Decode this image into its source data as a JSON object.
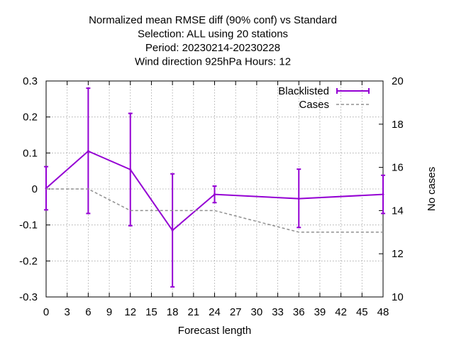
{
  "chart_data": {
    "type": "line",
    "title_lines": [
      "Normalized mean RMSE diff (90% conf) vs Standard",
      "Selection: ALL using    20 stations",
      "Period: 20230214-20230228",
      "Wind direction 925hPa   Hours:  12"
    ],
    "xlabel": "Forecast length",
    "ylabel": "",
    "y2label": "No cases",
    "xlim": [
      0,
      48
    ],
    "ylim": [
      -0.3,
      0.3
    ],
    "y2lim": [
      10,
      20
    ],
    "x_ticks": [
      0,
      3,
      6,
      9,
      12,
      15,
      18,
      21,
      24,
      27,
      30,
      33,
      36,
      39,
      42,
      45,
      48
    ],
    "x_tick_labels": [
      "0",
      "3",
      "6",
      "9",
      "12",
      "15",
      "18",
      "21",
      "24",
      "27",
      "30",
      "33",
      "36",
      "39",
      "42",
      "45",
      "48"
    ],
    "y_ticks": [
      -0.3,
      -0.2,
      -0.1,
      0,
      0.1,
      0.2,
      0.3
    ],
    "y_tick_labels": [
      "-0.3",
      "-0.2",
      "-0.1",
      "0",
      "0.1",
      "0.2",
      "0.3"
    ],
    "y2_ticks": [
      10,
      12,
      14,
      16,
      18,
      20
    ],
    "y2_tick_labels": [
      "10",
      "12",
      "14",
      "16",
      "18",
      "20"
    ],
    "grid": true,
    "legend_position": "top-right",
    "series": [
      {
        "name": "Blacklisted",
        "axis": "y",
        "style": "line-errorbars",
        "color": "#9400d3",
        "x": [
          0,
          6,
          12,
          18,
          24,
          36,
          48
        ],
        "values": [
          0.002,
          0.105,
          0.054,
          -0.115,
          -0.015,
          -0.027,
          -0.015
        ],
        "err_low": [
          -0.058,
          -0.068,
          -0.102,
          -0.272,
          -0.038,
          -0.107,
          -0.068
        ],
        "err_high": [
          0.062,
          0.28,
          0.21,
          0.042,
          0.008,
          0.055,
          0.038
        ]
      },
      {
        "name": "Cases",
        "axis": "y2",
        "style": "dashed",
        "color": "#909090",
        "x": [
          0,
          6,
          12,
          18,
          24,
          36,
          48
        ],
        "values": [
          15,
          15,
          14,
          14,
          14,
          13,
          13
        ]
      }
    ]
  }
}
